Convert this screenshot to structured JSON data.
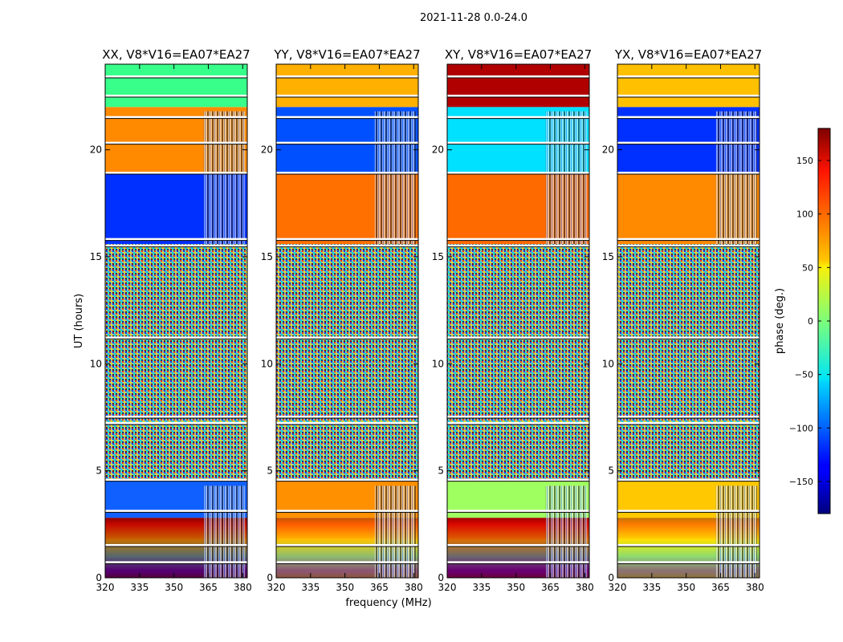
{
  "chart_data": {
    "type": "heatmap",
    "suptitle": "2021-11-28 0.0-24.0",
    "xlabel": "frequency (MHz)",
    "ylabel": "UT (hours)",
    "xlim": [
      320,
      382
    ],
    "ylim": [
      0,
      24
    ],
    "x_ticks": [
      320,
      335,
      350,
      365,
      380
    ],
    "y_ticks": [
      0,
      5,
      10,
      15,
      20
    ],
    "panels": [
      {
        "title": "XX, V8*V16=EA07*EA27",
        "polarization": "XX"
      },
      {
        "title": "YY, V8*V16=EA07*EA27",
        "polarization": "YY"
      },
      {
        "title": "XY, V8*V16=EA07*EA27",
        "polarization": "XY"
      },
      {
        "title": "YX, V8*V16=EA07*EA27",
        "polarization": "YX"
      }
    ],
    "colorbar": {
      "label": "phase (deg.)",
      "range": [
        -180,
        180
      ],
      "ticks": [
        150,
        100,
        50,
        0,
        -50,
        -100,
        -150
      ],
      "tick_labels": [
        "150",
        "100",
        "50",
        "0",
        "−50",
        "−100",
        "−150"
      ],
      "colormap": "jet"
    },
    "noise_band_hours": [
      4.6,
      15.6
    ],
    "rfi_band_mhz": [
      363,
      381
    ],
    "flagged_hours": [
      0.7,
      1.5,
      3.1,
      4.55,
      7.2,
      7.5,
      11.2,
      15.5,
      15.8,
      18.9,
      20.3,
      21.5,
      22.5,
      23.4
    ]
  }
}
